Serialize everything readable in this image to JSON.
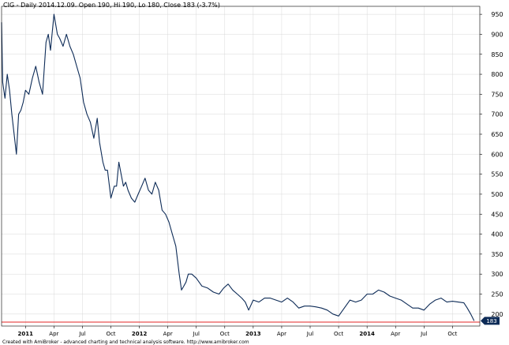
{
  "chart_data": {
    "type": "line",
    "title": "CIG - Daily 2014.12.09. Open 190, Hi 190, Lo 180, Close 183 (-3.7%)",
    "footer": "Created with AmiBroker - advanced charting and technical analysis software. http://www.amibroker.com",
    "y_ticks": [
      950,
      900,
      850,
      800,
      750,
      700,
      650,
      600,
      550,
      500,
      450,
      400,
      350,
      300,
      250,
      200
    ],
    "ylim": [
      170,
      970
    ],
    "x_ticks": [
      {
        "label": "2011",
        "x": 2011.0,
        "bold": true
      },
      {
        "label": "Apr",
        "x": 2011.25,
        "bold": false
      },
      {
        "label": "Jul",
        "x": 2011.5,
        "bold": false
      },
      {
        "label": "Oct",
        "x": 2011.75,
        "bold": false
      },
      {
        "label": "2012",
        "x": 2012.0,
        "bold": true
      },
      {
        "label": "Apr",
        "x": 2012.25,
        "bold": false
      },
      {
        "label": "Jul",
        "x": 2012.5,
        "bold": false
      },
      {
        "label": "Oct",
        "x": 2012.75,
        "bold": false
      },
      {
        "label": "2013",
        "x": 2013.0,
        "bold": true
      },
      {
        "label": "Apr",
        "x": 2013.25,
        "bold": false
      },
      {
        "label": "Jul",
        "x": 2013.5,
        "bold": false
      },
      {
        "label": "Oct",
        "x": 2013.75,
        "bold": false
      },
      {
        "label": "2014",
        "x": 2014.0,
        "bold": true
      },
      {
        "label": "Apr",
        "x": 2014.25,
        "bold": false
      },
      {
        "label": "Jul",
        "x": 2014.5,
        "bold": false
      },
      {
        "label": "Oct",
        "x": 2014.75,
        "bold": false
      }
    ],
    "xlim": [
      2010.79,
      2014.99
    ],
    "grid": true,
    "last_close": 183,
    "last_close_label": "183",
    "reference_line_value": 180,
    "colors": {
      "price": "#0d2b57",
      "grid": "#d8d8d8",
      "reference": "#e32626",
      "badge": "#0d2b57"
    },
    "series": [
      {
        "x": [
          2010.79,
          2010.8,
          2010.82,
          2010.84,
          2010.86,
          2010.88,
          2010.9,
          2010.92,
          2010.94,
          2010.96,
          2010.98,
          2011.0,
          2011.03,
          2011.06,
          2011.09,
          2011.12,
          2011.15,
          2011.18,
          2011.2,
          2011.22,
          2011.25,
          2011.28,
          2011.3,
          2011.33,
          2011.36,
          2011.39,
          2011.42,
          2011.45,
          2011.48,
          2011.51,
          2011.54,
          2011.57,
          2011.6,
          2011.63,
          2011.65,
          2011.68,
          2011.7,
          2011.72,
          2011.75,
          2011.78,
          2011.8,
          2011.82,
          2011.84,
          2011.86,
          2011.88,
          2011.9,
          2011.93,
          2011.96,
          2011.99,
          2012.02,
          2012.05,
          2012.08,
          2012.11,
          2012.14,
          2012.17,
          2012.2,
          2012.23,
          2012.26,
          2012.29,
          2012.32,
          2012.35,
          2012.37,
          2012.39,
          2012.41,
          2012.43,
          2012.46,
          2012.5,
          2012.55,
          2012.6,
          2012.65,
          2012.7,
          2012.74,
          2012.78,
          2012.82,
          2012.86,
          2012.9,
          2012.93,
          2012.96,
          2013.0,
          2013.05,
          2013.1,
          2013.15,
          2013.2,
          2013.25,
          2013.3,
          2013.35,
          2013.4,
          2013.45,
          2013.5,
          2013.55,
          2013.6,
          2013.65,
          2013.7,
          2013.75,
          2013.8,
          2013.85,
          2013.9,
          2013.95,
          2014.0,
          2014.05,
          2014.1,
          2014.15,
          2014.2,
          2014.25,
          2014.3,
          2014.35,
          2014.4,
          2014.45,
          2014.5,
          2014.55,
          2014.6,
          2014.65,
          2014.7,
          2014.75,
          2014.8,
          2014.85,
          2014.88,
          2014.91,
          2014.94
        ],
        "values": [
          930,
          780,
          740,
          800,
          760,
          700,
          650,
          600,
          700,
          710,
          730,
          760,
          750,
          790,
          820,
          780,
          750,
          880,
          900,
          860,
          950,
          900,
          890,
          870,
          900,
          870,
          850,
          820,
          790,
          730,
          700,
          680,
          640,
          690,
          630,
          580,
          560,
          560,
          490,
          520,
          520,
          580,
          550,
          520,
          530,
          510,
          490,
          480,
          500,
          520,
          540,
          510,
          500,
          530,
          510,
          460,
          450,
          430,
          400,
          370,
          300,
          260,
          270,
          280,
          300,
          300,
          290,
          270,
          265,
          255,
          250,
          265,
          275,
          260,
          250,
          240,
          230,
          210,
          235,
          230,
          240,
          240,
          235,
          230,
          240,
          230,
          215,
          220,
          220,
          218,
          215,
          210,
          200,
          195,
          215,
          235,
          230,
          235,
          250,
          250,
          260,
          255,
          245,
          240,
          235,
          225,
          215,
          215,
          210,
          225,
          235,
          240,
          230,
          232,
          230,
          228,
          215,
          200,
          183
        ]
      }
    ]
  }
}
